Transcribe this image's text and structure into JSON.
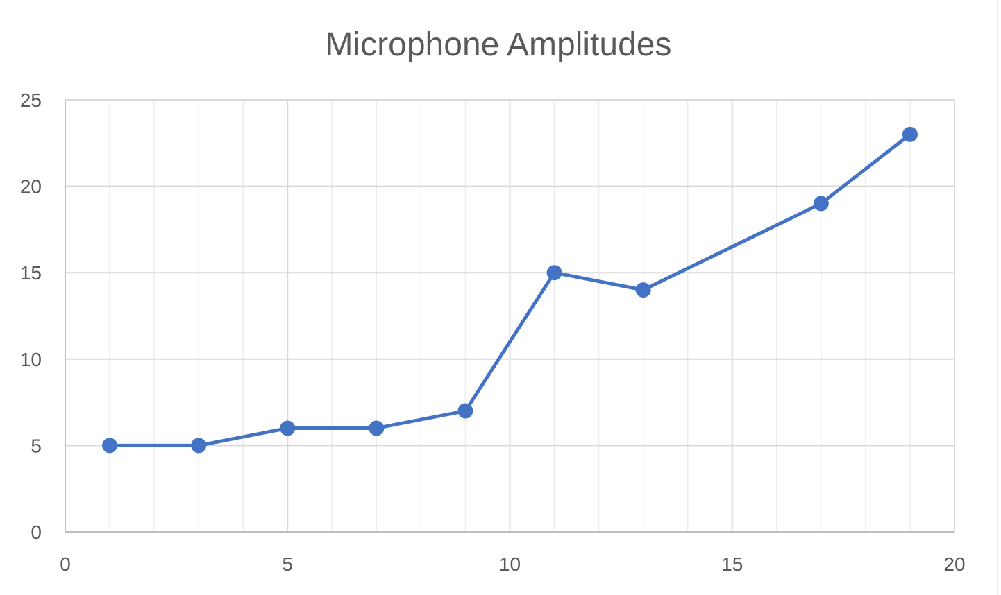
{
  "colors": {
    "series": "#4472c4",
    "text": "#595959",
    "grid_major": "#d9d9d9",
    "grid_minor": "#ececec",
    "background": "#ffffff"
  },
  "chart_data": {
    "type": "scatter",
    "title": "Microphone Amplitudes",
    "xlabel": "",
    "ylabel": "",
    "xlim": [
      0,
      20
    ],
    "ylim": [
      0,
      25
    ],
    "x_ticks": [
      0,
      5,
      10,
      15,
      20
    ],
    "y_ticks": [
      0,
      5,
      10,
      15,
      20,
      25
    ],
    "x_ticks_text": [
      "0",
      "5",
      "10",
      "15",
      "20"
    ],
    "y_ticks_text": [
      "0",
      "5",
      "10",
      "15",
      "20",
      "25"
    ],
    "x_minor_step": 1,
    "grid": true,
    "legend": "none",
    "markers": true,
    "series": [
      {
        "x": [
          1,
          3,
          5,
          7,
          9,
          11,
          13,
          17,
          19
        ],
        "y": [
          5,
          5,
          6,
          6,
          7,
          15,
          14,
          19,
          23
        ]
      }
    ]
  }
}
